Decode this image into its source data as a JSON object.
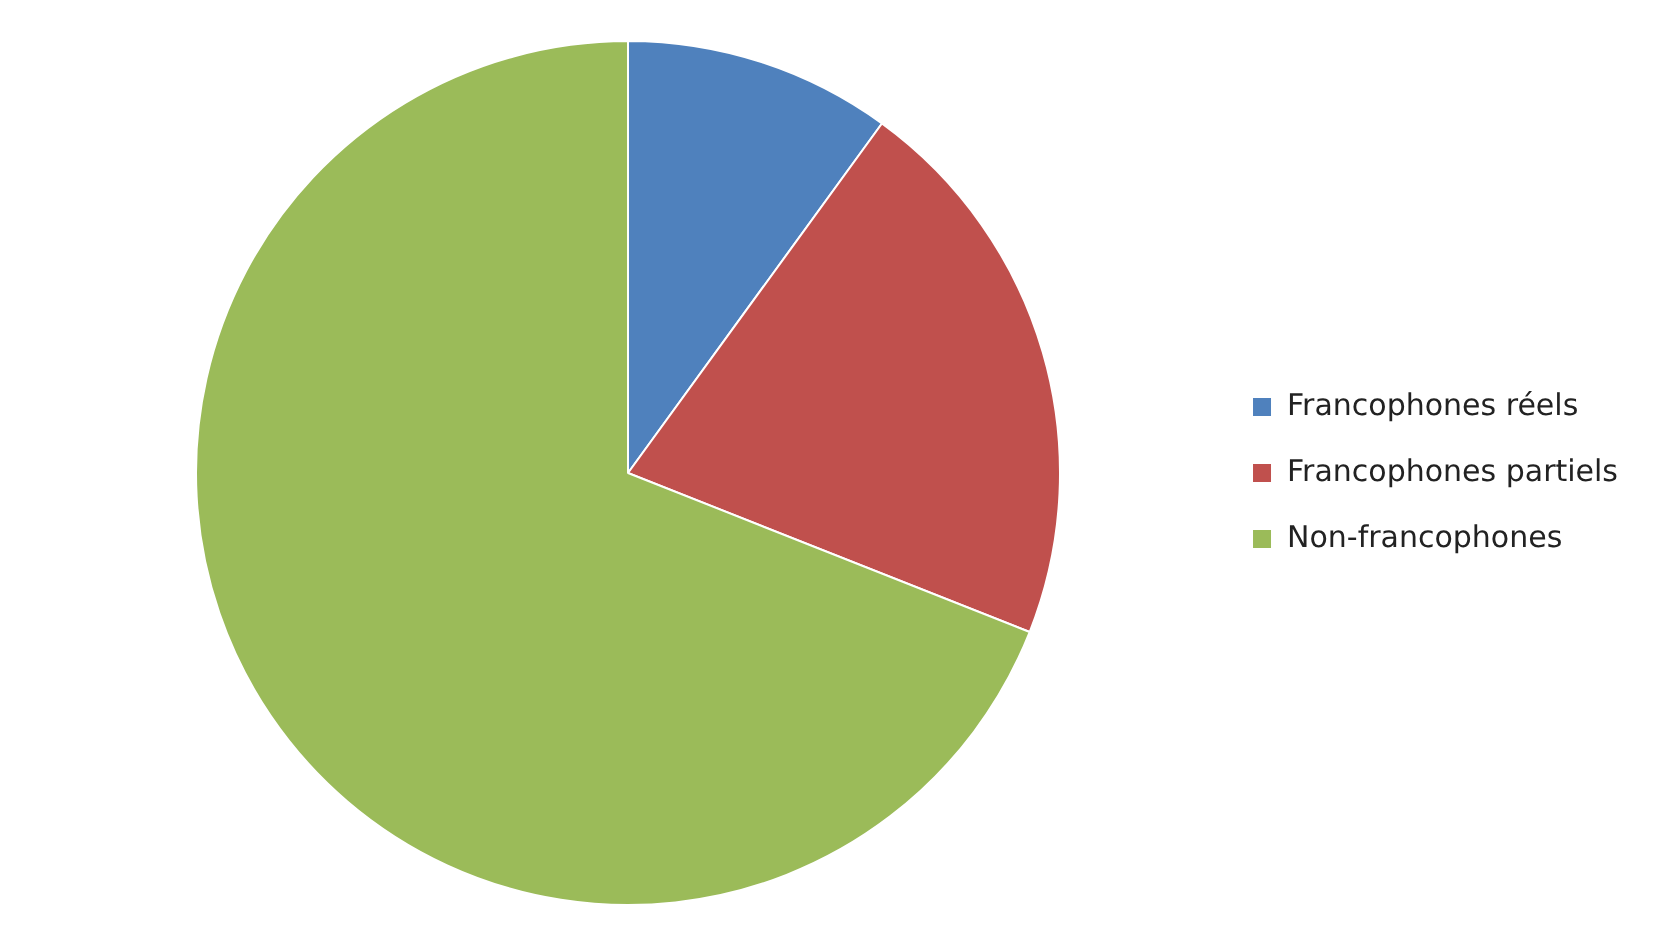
{
  "chart_data": {
    "type": "pie",
    "categories": [
      "Francophones réels",
      "Francophones partiels",
      "Non-francophones"
    ],
    "values": [
      10,
      21,
      69
    ],
    "colors": [
      "#4f81bd",
      "#c0504d",
      "#9bbb59"
    ],
    "legend": "right"
  }
}
